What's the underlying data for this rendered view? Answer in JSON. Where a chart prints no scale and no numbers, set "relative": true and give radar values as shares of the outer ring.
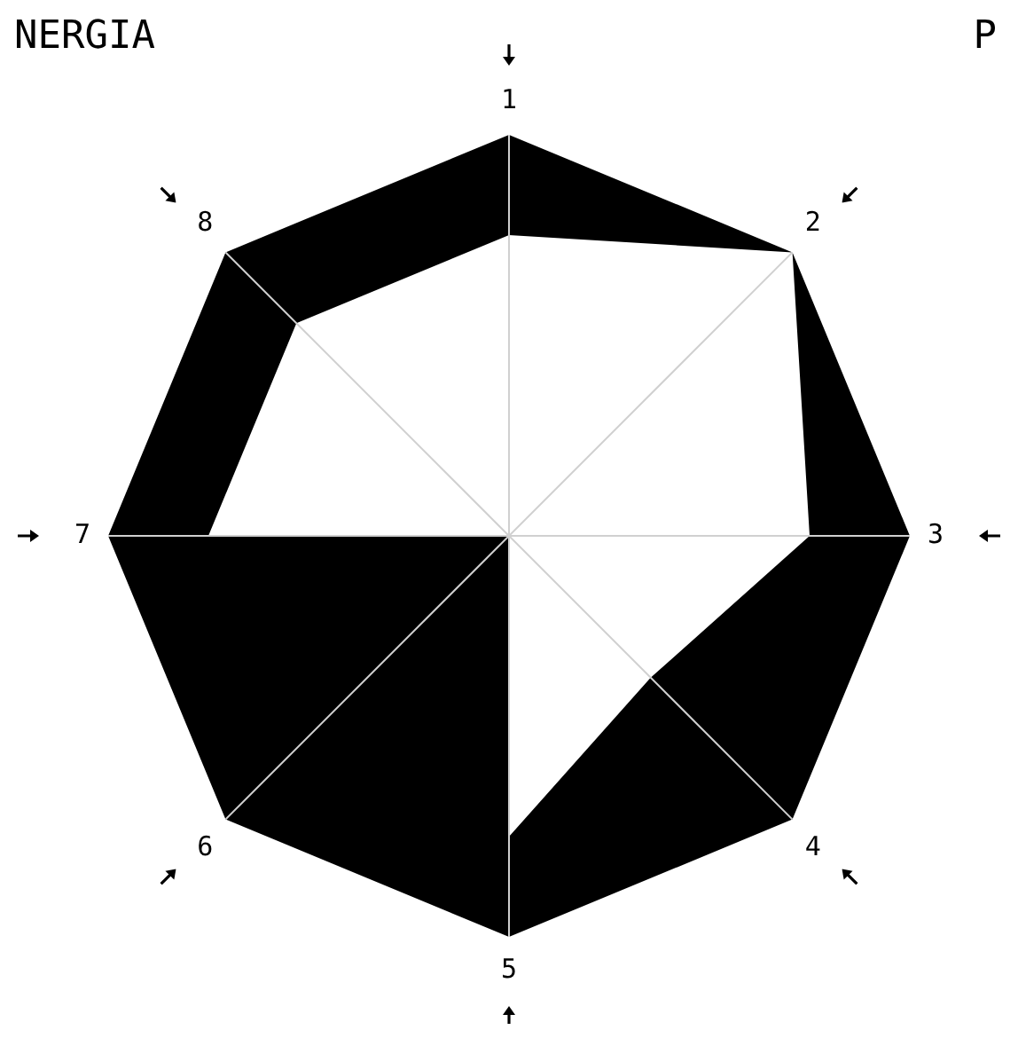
{
  "chart_data": {
    "type": "radar",
    "title": "NERGIA",
    "annotations": [
      "P"
    ],
    "categories": [
      "1",
      "2",
      "3",
      "4",
      "5",
      "6",
      "7",
      "8"
    ],
    "relative": true,
    "series": [
      {
        "color": "#000000",
        "values": [
          0.75,
          1,
          0.75,
          0.5,
          0.75,
          0,
          0.75,
          0.75
        ]
      }
    ],
    "grid": false,
    "legend": false,
    "marker": "none"
  }
}
